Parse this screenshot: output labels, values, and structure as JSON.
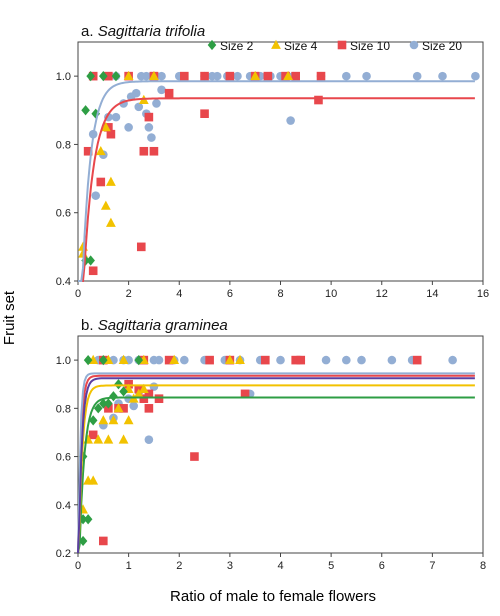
{
  "figure": {
    "shared_ylabel": "Fruit set",
    "shared_xlabel": "Ratio of male to female flowers"
  },
  "legend": [
    {
      "name": "Size 2",
      "marker": "diamond",
      "color": "#2e9e44"
    },
    {
      "name": "Size 4",
      "marker": "triangle",
      "color": "#f2c200"
    },
    {
      "name": "Size 10",
      "marker": "square",
      "color": "#e8474c"
    },
    {
      "name": "Size 20",
      "marker": "circle",
      "color": "#93aed4"
    }
  ],
  "chart_data": [
    {
      "type": "scatter",
      "panel": "a.",
      "title": "Sagittaria trifolia",
      "xlim": [
        0,
        16
      ],
      "ylim": [
        0.4,
        1.1
      ],
      "xticks": [
        "0",
        "2",
        "4",
        "6",
        "8",
        "10",
        "12",
        "14",
        "16"
      ],
      "yticks": [
        "0.4",
        "0.6",
        "0.8",
        "1.0"
      ],
      "grid": false,
      "legend_position": "top",
      "series": [
        {
          "name": "Size 2",
          "points": [
            [
              0.3,
              0.46
            ],
            [
              0.5,
              0.46
            ],
            [
              0.3,
              0.9
            ],
            [
              0.7,
              0.89
            ],
            [
              0.5,
              1.0
            ],
            [
              1.0,
              1.0
            ],
            [
              1.5,
              1.0
            ]
          ]
        },
        {
          "name": "Size 4",
          "points": [
            [
              0.2,
              0.5
            ],
            [
              0.2,
              0.48
            ],
            [
              0.9,
              0.78
            ],
            [
              1.1,
              0.85
            ],
            [
              1.3,
              0.57
            ],
            [
              1.1,
              0.62
            ],
            [
              1.3,
              0.69
            ],
            [
              2.6,
              0.93
            ],
            [
              2.0,
              1.0
            ],
            [
              3.0,
              1.0
            ],
            [
              7.0,
              1.0
            ],
            [
              8.3,
              1.0
            ]
          ]
        },
        {
          "name": "Size 10",
          "points": [
            [
              0.4,
              0.78
            ],
            [
              0.6,
              0.43
            ],
            [
              0.9,
              0.69
            ],
            [
              1.2,
              0.85
            ],
            [
              1.3,
              0.83
            ],
            [
              2.5,
              0.5
            ],
            [
              2.6,
              0.78
            ],
            [
              3.0,
              0.78
            ],
            [
              2.8,
              0.88
            ],
            [
              3.6,
              0.95
            ],
            [
              5.0,
              0.89
            ],
            [
              9.5,
              0.93
            ],
            [
              0.6,
              1.0
            ],
            [
              1.2,
              1.0
            ],
            [
              2.0,
              1.0
            ],
            [
              3.0,
              1.0
            ],
            [
              4.2,
              1.0
            ],
            [
              5.0,
              1.0
            ],
            [
              6.0,
              1.0
            ],
            [
              7.0,
              1.0
            ],
            [
              7.5,
              1.0
            ],
            [
              8.2,
              1.0
            ],
            [
              8.6,
              1.0
            ],
            [
              9.6,
              1.0
            ]
          ]
        },
        {
          "name": "Size 20",
          "points": [
            [
              0.6,
              0.83
            ],
            [
              0.7,
              0.65
            ],
            [
              1.0,
              0.77
            ],
            [
              1.2,
              0.88
            ],
            [
              1.5,
              0.88
            ],
            [
              1.8,
              0.92
            ],
            [
              2.0,
              0.85
            ],
            [
              2.1,
              0.94
            ],
            [
              2.3,
              0.95
            ],
            [
              2.4,
              0.91
            ],
            [
              2.7,
              0.89
            ],
            [
              2.8,
              0.85
            ],
            [
              2.9,
              0.82
            ],
            [
              3.1,
              0.92
            ],
            [
              3.3,
              0.96
            ],
            [
              8.4,
              0.87
            ],
            [
              1.5,
              1.0
            ],
            [
              2.5,
              1.0
            ],
            [
              2.7,
              1.0
            ],
            [
              2.9,
              1.0
            ],
            [
              3.1,
              1.0
            ],
            [
              3.3,
              1.0
            ],
            [
              4.0,
              1.0
            ],
            [
              5.0,
              1.0
            ],
            [
              5.3,
              1.0
            ],
            [
              5.5,
              1.0
            ],
            [
              5.9,
              1.0
            ],
            [
              6.3,
              1.0
            ],
            [
              6.8,
              1.0
            ],
            [
              7.2,
              1.0
            ],
            [
              7.6,
              1.0
            ],
            [
              8.0,
              1.0
            ],
            [
              8.5,
              1.0
            ],
            [
              9.6,
              1.0
            ],
            [
              10.6,
              1.0
            ],
            [
              11.4,
              1.0
            ],
            [
              13.4,
              1.0
            ],
            [
              14.4,
              1.0
            ],
            [
              15.7,
              1.0
            ]
          ]
        }
      ],
      "fits": [
        {
          "series": "Size 10",
          "asymptote": 0.935,
          "rate": 2.5
        },
        {
          "series": "Size 20",
          "asymptote": 0.985,
          "rate": 3.0
        }
      ]
    },
    {
      "type": "scatter",
      "panel": "b.",
      "title": "Sagittaria graminea",
      "xlim": [
        0,
        8
      ],
      "ylim": [
        0.2,
        1.1
      ],
      "xticks": [
        "0",
        "1",
        "2",
        "3",
        "4",
        "5",
        "6",
        "7",
        "8"
      ],
      "yticks": [
        "0.2",
        "0.4",
        "0.6",
        "0.8",
        "1.0"
      ],
      "grid": false,
      "series": [
        {
          "name": "Size 2",
          "points": [
            [
              0.1,
              0.25
            ],
            [
              0.1,
              0.34
            ],
            [
              0.2,
              0.34
            ],
            [
              0.1,
              0.6
            ],
            [
              0.3,
              0.75
            ],
            [
              0.4,
              0.8
            ],
            [
              0.5,
              0.82
            ],
            [
              0.6,
              0.82
            ],
            [
              0.7,
              0.85
            ],
            [
              0.9,
              0.87
            ],
            [
              0.8,
              0.9
            ],
            [
              0.2,
              1.0
            ],
            [
              0.5,
              1.0
            ],
            [
              1.2,
              1.0
            ]
          ]
        },
        {
          "name": "Size 4",
          "points": [
            [
              0.1,
              0.38
            ],
            [
              0.2,
              0.5
            ],
            [
              0.3,
              0.5
            ],
            [
              0.2,
              0.67
            ],
            [
              0.4,
              0.67
            ],
            [
              0.6,
              0.67
            ],
            [
              0.5,
              0.75
            ],
            [
              0.7,
              0.75
            ],
            [
              0.9,
              0.67
            ],
            [
              0.8,
              0.8
            ],
            [
              1.0,
              0.75
            ],
            [
              1.1,
              0.84
            ],
            [
              1.2,
              0.86
            ],
            [
              1.0,
              0.88
            ],
            [
              1.3,
              0.88
            ],
            [
              0.3,
              1.0
            ],
            [
              0.6,
              1.0
            ],
            [
              0.9,
              1.0
            ],
            [
              1.3,
              1.0
            ],
            [
              1.9,
              1.0
            ],
            [
              3.0,
              1.0
            ],
            [
              3.2,
              1.0
            ]
          ]
        },
        {
          "name": "Size 10",
          "points": [
            [
              0.3,
              0.69
            ],
            [
              0.5,
              0.25
            ],
            [
              0.6,
              0.8
            ],
            [
              0.8,
              0.8
            ],
            [
              0.9,
              0.8
            ],
            [
              1.0,
              0.9
            ],
            [
              1.2,
              0.88
            ],
            [
              1.3,
              0.84
            ],
            [
              1.4,
              0.8
            ],
            [
              1.4,
              0.86
            ],
            [
              1.6,
              0.84
            ],
            [
              2.3,
              0.6
            ],
            [
              3.3,
              0.86
            ],
            [
              0.5,
              1.0
            ],
            [
              1.3,
              1.0
            ],
            [
              1.8,
              1.0
            ],
            [
              2.6,
              1.0
            ],
            [
              3.0,
              1.0
            ],
            [
              3.7,
              1.0
            ],
            [
              4.3,
              1.0
            ],
            [
              4.4,
              1.0
            ],
            [
              6.7,
              1.0
            ]
          ]
        },
        {
          "name": "Size 20",
          "points": [
            [
              0.5,
              0.73
            ],
            [
              0.7,
              0.76
            ],
            [
              0.8,
              0.82
            ],
            [
              1.0,
              0.84
            ],
            [
              1.1,
              0.81
            ],
            [
              1.2,
              0.87
            ],
            [
              1.4,
              0.67
            ],
            [
              1.5,
              0.89
            ],
            [
              3.4,
              0.86
            ],
            [
              0.4,
              1.0
            ],
            [
              0.7,
              1.0
            ],
            [
              0.9,
              1.0
            ],
            [
              1.0,
              1.0
            ],
            [
              1.2,
              1.0
            ],
            [
              1.5,
              1.0
            ],
            [
              1.6,
              1.0
            ],
            [
              1.9,
              1.0
            ],
            [
              2.1,
              1.0
            ],
            [
              2.5,
              1.0
            ],
            [
              2.9,
              1.0
            ],
            [
              3.2,
              1.0
            ],
            [
              3.6,
              1.0
            ],
            [
              4.0,
              1.0
            ],
            [
              4.4,
              1.0
            ],
            [
              4.9,
              1.0
            ],
            [
              5.3,
              1.0
            ],
            [
              5.6,
              1.0
            ],
            [
              6.2,
              1.0
            ],
            [
              6.6,
              1.0
            ],
            [
              7.4,
              1.0
            ]
          ]
        }
      ],
      "fits": [
        {
          "series": "Size 2",
          "asymptote": 0.845,
          "rate": 10
        },
        {
          "series": "Size 4",
          "asymptote": 0.895,
          "rate": 14
        },
        {
          "series": "Size 10",
          "asymptote": 0.935,
          "rate": 20
        },
        {
          "series": "Size 20",
          "asymptote": 0.945,
          "rate": 26
        },
        {
          "series": "",
          "asymptote": 0.925,
          "rate": 16,
          "color": "#5b3fa0"
        }
      ]
    }
  ]
}
